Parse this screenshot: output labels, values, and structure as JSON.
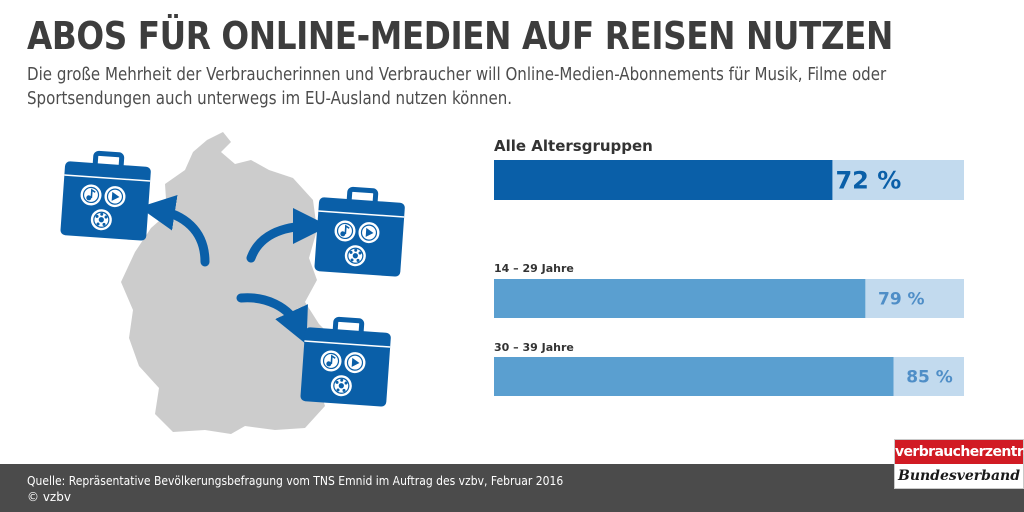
{
  "header": {
    "title": "ABOS FÜR ONLINE-MEDIEN AUF REISEN NUTZEN",
    "subtitle": "Die große Mehrheit der Verbraucherinnen und Verbraucher will Online-Medien-Abonnements für Musik, Filme oder Sportsendungen auch unterwegs im EU-Ausland nutzen können."
  },
  "illustration": {
    "map_color": "#cccccc",
    "icon_color": "#0a5fa8",
    "icons": [
      "suitcase-icon",
      "music-note-icon",
      "play-icon",
      "football-icon",
      "arrow-icon"
    ]
  },
  "chart_data": {
    "type": "bar",
    "orientation": "horizontal",
    "categories": [
      "Alle Altersgruppen",
      "14 – 29 Jahre",
      "30 – 39 Jahre"
    ],
    "values": [
      72,
      79,
      85
    ],
    "value_labels": [
      "72 %",
      "79 %",
      "85 %"
    ],
    "unit": "%",
    "xlim": [
      0,
      100
    ],
    "grid": false,
    "colors": {
      "primary": "#0a5fa8",
      "secondary": "#5a9fd0",
      "track": "#c2daee",
      "primary_label": "#0a5fa8",
      "secondary_label": "#4f8ec7"
    }
  },
  "footer": {
    "source": "Quelle: Repräsentative Bevölkerungsbefragung vom TNS Emnid im Auftrag des vzbv, Februar 2016",
    "copyright": "© vzbv"
  },
  "logo": {
    "top": "verbraucherzentrale",
    "bottom": "Bundesverband"
  }
}
